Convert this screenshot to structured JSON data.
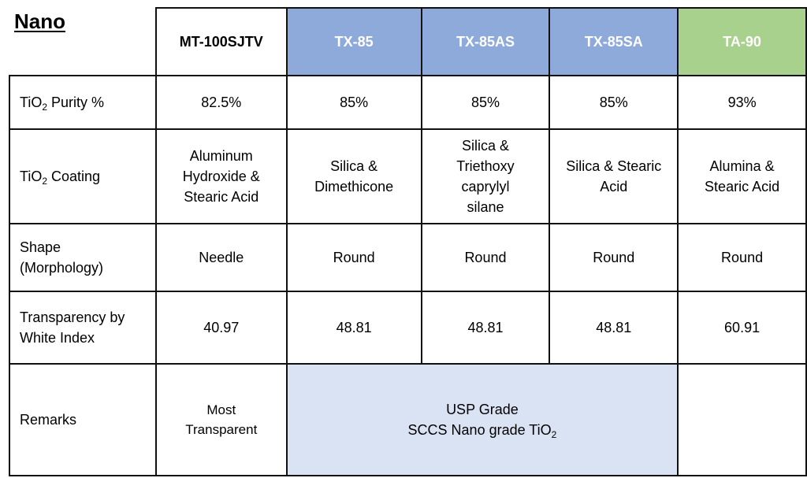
{
  "title": "Nano",
  "headers": [
    "MT-100SJTV",
    "TX-85",
    "TX-85AS",
    "TX-85SA",
    "TA-90"
  ],
  "rows": [
    {
      "label_main": "TiO",
      "label_sub": "2",
      "label_rest": " Purity %",
      "cells": [
        "82.5%",
        "85%",
        "85%",
        "85%",
        "93%"
      ]
    },
    {
      "label_main": "TiO",
      "label_sub": "2",
      "label_rest": " Coating",
      "cells": [
        [
          "Aluminum",
          "Hydroxide &",
          "Stearic Acid"
        ],
        [
          "Silica &",
          "Dimethicone"
        ],
        [
          "Silica &",
          "Triethoxy",
          "caprylyl",
          "silane"
        ],
        [
          "Silica & Stearic",
          "Acid"
        ],
        [
          "Alumina &",
          "Stearic Acid"
        ]
      ]
    },
    {
      "label_lines": [
        "Shape",
        "(Morphology)"
      ],
      "cells": [
        "Needle",
        "Round",
        "Round",
        "Round",
        "Round"
      ]
    },
    {
      "label_lines": [
        "Transparency by",
        "White Index"
      ],
      "cells": [
        "40.97",
        "48.81",
        "48.81",
        "48.81",
        "60.91"
      ]
    }
  ],
  "remarks": {
    "label": "Remarks",
    "mt": [
      "Most",
      "Transparent"
    ],
    "merged_line1": "USP Grade",
    "merged_line2_main": "SCCS Nano grade TiO",
    "merged_line2_sub": "2",
    "ta": ""
  },
  "colors": {
    "tx_header": "#8eaadb",
    "ta_header": "#a9d18e",
    "remarks_merged": "#dae3f3"
  }
}
